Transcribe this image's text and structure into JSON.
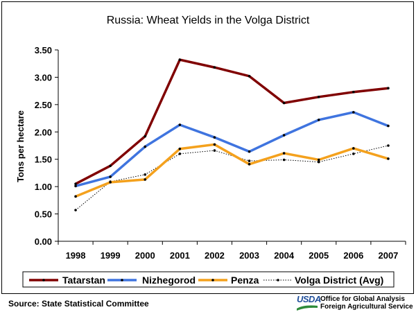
{
  "chart_data": {
    "type": "line",
    "title": "Russia:  Wheat Yields in the Volga District",
    "xlabel": "",
    "ylabel": "Tons per hectare",
    "x": [
      "1998",
      "1999",
      "2000",
      "2001",
      "2002",
      "2003",
      "2004",
      "2005",
      "2006",
      "2007"
    ],
    "ylim": [
      0,
      3.5
    ],
    "yticks": [
      "0.00",
      "0.50",
      "1.00",
      "1.50",
      "2.00",
      "2.50",
      "3.00",
      "3.50"
    ],
    "grid": false,
    "legend_position": "bottom",
    "series": [
      {
        "name": "Tatarstan",
        "color": "#800000",
        "style": "solid-thick",
        "values": [
          1.05,
          1.38,
          1.92,
          3.32,
          3.18,
          3.02,
          2.53,
          2.64,
          2.73,
          2.8
        ]
      },
      {
        "name": "Nizhegorod",
        "color": "#3f74df",
        "style": "solid-thick",
        "values": [
          1.01,
          1.18,
          1.73,
          2.13,
          1.9,
          1.64,
          1.94,
          2.22,
          2.36,
          2.11
        ]
      },
      {
        "name": "Penza",
        "color": "#f4a11d",
        "style": "solid-thick",
        "values": [
          0.82,
          1.08,
          1.13,
          1.69,
          1.77,
          1.41,
          1.61,
          1.49,
          1.7,
          1.51
        ]
      },
      {
        "name": "Volga District (Avg)",
        "color": "#000000",
        "style": "dotted",
        "values": [
          0.57,
          1.09,
          1.22,
          1.6,
          1.66,
          1.47,
          1.49,
          1.45,
          1.6,
          1.75
        ]
      }
    ]
  },
  "footer": {
    "source": "Source:  State Statistical Committee",
    "logo_word": "USDA",
    "logo_line1": "Office for Global Analysis",
    "logo_line2": "Foreign Agricultural Service"
  }
}
